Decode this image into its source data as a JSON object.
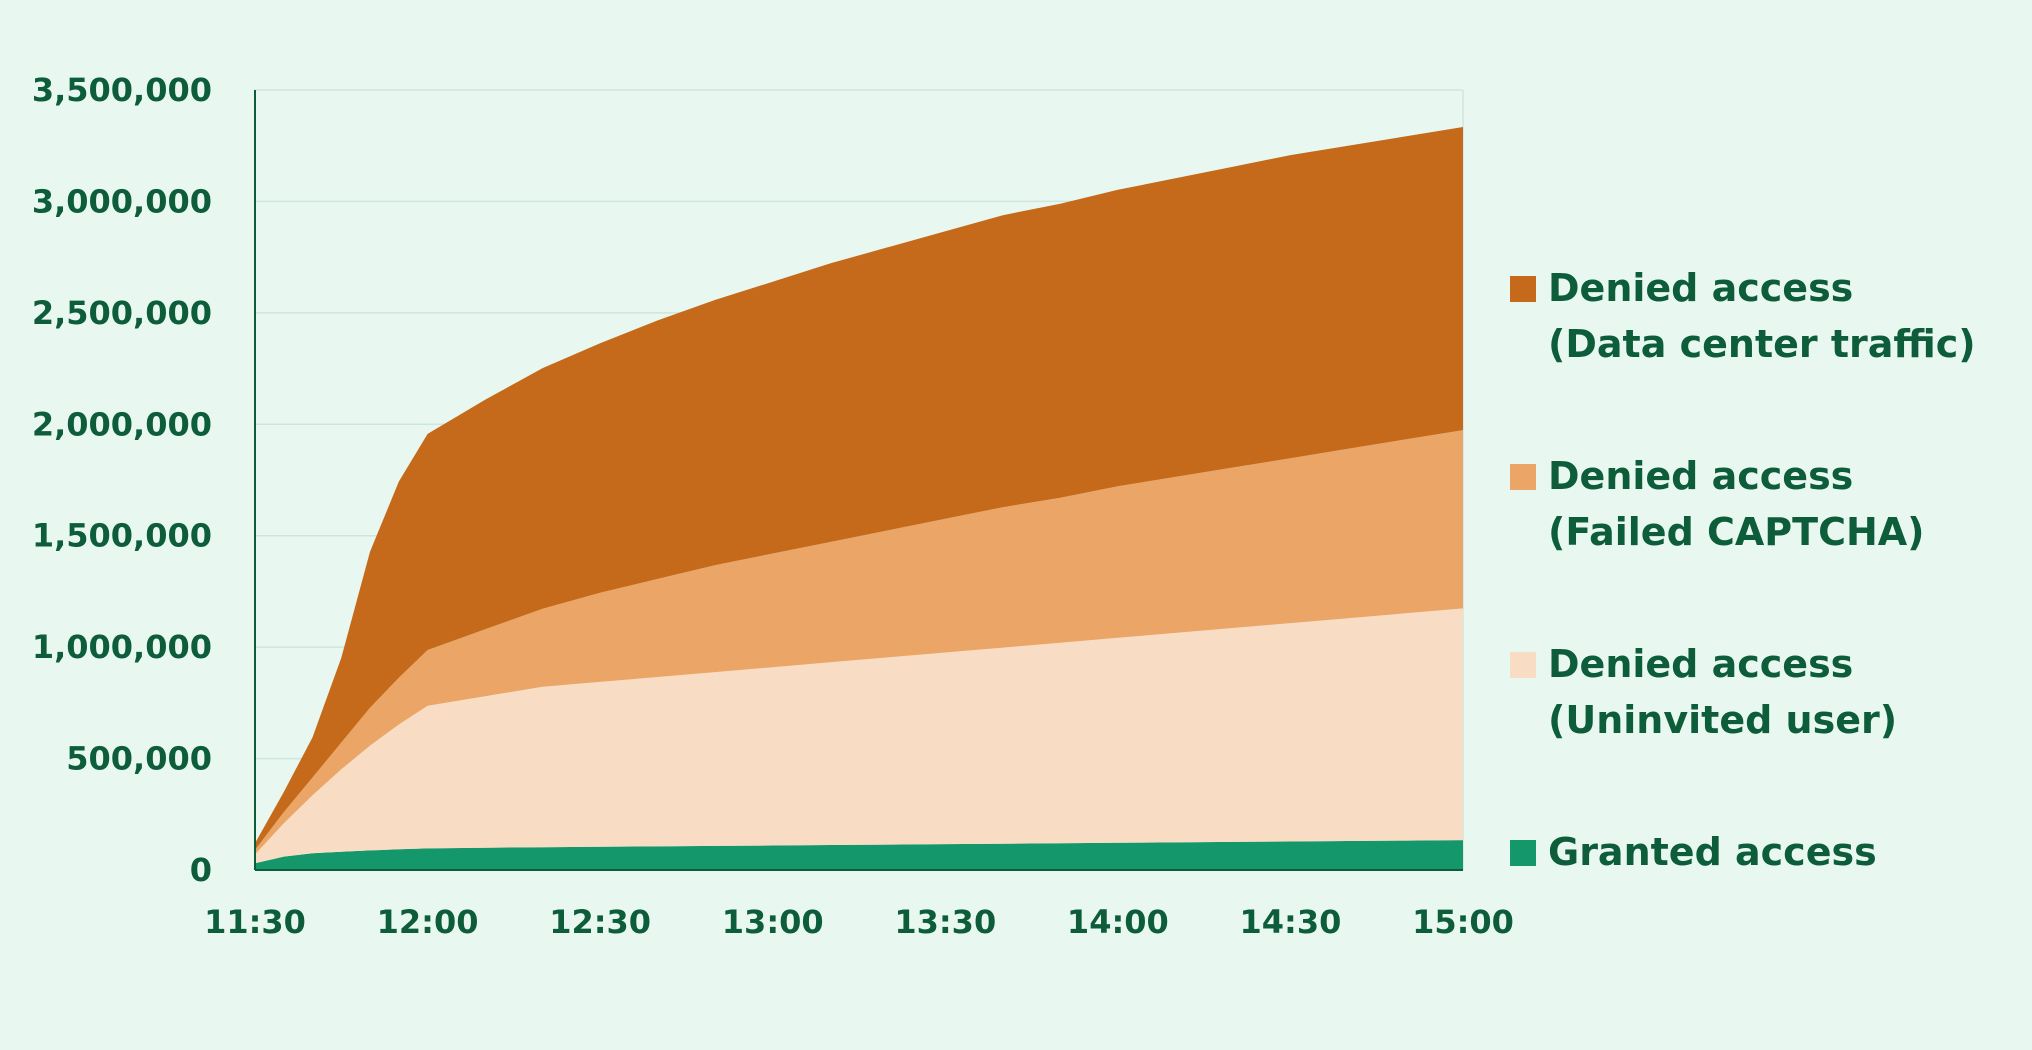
{
  "chart_data": {
    "type": "area",
    "stacked": true,
    "xlabel": "",
    "ylabel": "",
    "x": [
      "11:30",
      "11:35",
      "11:40",
      "11:45",
      "11:50",
      "11:55",
      "12:00",
      "12:10",
      "12:20",
      "12:30",
      "12:40",
      "12:50",
      "13:00",
      "13:10",
      "13:20",
      "13:30",
      "13:40",
      "13:50",
      "14:00",
      "14:10",
      "14:20",
      "14:30",
      "14:40",
      "14:50",
      "15:00"
    ],
    "x_ticks": [
      "11:30",
      "12:00",
      "12:30",
      "13:00",
      "13:30",
      "14:00",
      "14:30",
      "15:00"
    ],
    "y_ticks": [
      "0",
      "500,000",
      "1,000,000",
      "1,500,000",
      "2,000,000",
      "2,500,000",
      "3,000,000",
      "3,500,000"
    ],
    "ylim": [
      0,
      3500000
    ],
    "grid": true,
    "legend_position": "right",
    "series": [
      {
        "name": "Granted access",
        "color": "#14976a",
        "values": [
          30000,
          60000,
          75000,
          82000,
          88000,
          93000,
          97000,
          100000,
          102000,
          104000,
          106000,
          108000,
          110000,
          112000,
          114000,
          116000,
          118000,
          120000,
          122000,
          124000,
          126000,
          128000,
          130000,
          132000,
          134000
        ]
      },
      {
        "name": "Denied access\n(Uninvited user)",
        "color": "#f9dcc4",
        "values": [
          40000,
          150000,
          260000,
          370000,
          470000,
          560000,
          640000,
          680000,
          720000,
          740000,
          760000,
          780000,
          800000,
          820000,
          840000,
          860000,
          880000,
          900000,
          920000,
          940000,
          960000,
          980000,
          1000000,
          1020000,
          1040000
        ]
      },
      {
        "name": "Denied access\n(Failed CAPTCHA)",
        "color": "#eba567",
        "values": [
          20000,
          50000,
          80000,
          120000,
          170000,
          210000,
          250000,
          300000,
          350000,
          400000,
          440000,
          480000,
          510000,
          540000,
          570000,
          600000,
          630000,
          650000,
          680000,
          700000,
          720000,
          740000,
          760000,
          780000,
          800000
        ]
      },
      {
        "name": "Denied access\n(Data center traffic)",
        "color": "#c46a1a",
        "values": [
          30000,
          90000,
          180000,
          380000,
          700000,
          880000,
          970000,
          1030000,
          1080000,
          1120000,
          1160000,
          1190000,
          1220000,
          1250000,
          1270000,
          1290000,
          1310000,
          1320000,
          1330000,
          1340000,
          1350000,
          1360000,
          1360000,
          1360000,
          1360000
        ]
      }
    ],
    "legend_order": [
      "Denied access\n(Data center traffic)",
      "Denied access\n(Failed CAPTCHA)",
      "Denied access\n(Uninvited user)",
      "Granted access"
    ]
  }
}
